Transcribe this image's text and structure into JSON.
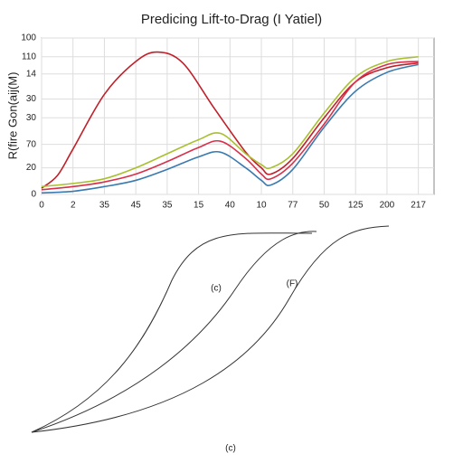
{
  "chart_data": {
    "type": "line",
    "title": "Predicing Lift-to-Drag (I Yatiel)",
    "ylabel": "R(fire Gon(aij(M)",
    "xlim": [
      0,
      12.5
    ],
    "ylim": [
      0,
      100
    ],
    "xticks": [
      0,
      {
        "value": 1,
        "label": "2"
      },
      {
        "value": 2,
        "label": "35"
      },
      {
        "value": 3,
        "label": "45"
      },
      {
        "value": 4,
        "label": "35"
      },
      {
        "value": 5,
        "label": "15"
      },
      {
        "value": 6,
        "label": "40"
      },
      {
        "value": 7,
        "label": "10"
      },
      {
        "value": 8,
        "label": "77"
      },
      {
        "value": 9,
        "label": "50"
      },
      {
        "value": 10,
        "label": "125"
      },
      {
        "value": 11,
        "label": "200"
      },
      {
        "value": 12,
        "label": "217"
      }
    ],
    "yticks": [
      0,
      {
        "value": 17,
        "label": "20"
      },
      {
        "value": 32,
        "label": "70"
      },
      {
        "value": 49,
        "label": "30"
      },
      {
        "value": 61,
        "label": "30"
      },
      {
        "value": 77,
        "label": "14"
      },
      {
        "value": 88,
        "label": "110"
      },
      100
    ],
    "grid": true,
    "series": [
      {
        "color": "#c0202a",
        "x": [
          0,
          0.5,
          1,
          2,
          3,
          3.7,
          4.5,
          5.5,
          6.5,
          7,
          7.3,
          8,
          9,
          10,
          11,
          12
        ],
        "values": [
          4,
          12,
          29,
          64,
          85,
          91,
          84,
          55,
          27,
          17,
          13,
          23,
          49,
          72,
          81,
          84
        ]
      },
      {
        "color": "#a8c030",
        "x": [
          0,
          1,
          2,
          3,
          4,
          5,
          5.7,
          6.5,
          7,
          7.3,
          8,
          9,
          10,
          11,
          12
        ],
        "values": [
          5,
          7,
          10,
          17,
          26,
          35,
          39,
          26,
          19,
          17,
          26,
          52,
          75,
          85,
          88
        ]
      },
      {
        "color": "#d8304a",
        "x": [
          0,
          1,
          2,
          3,
          4,
          5,
          5.7,
          6.5,
          7,
          7.3,
          8,
          9,
          10,
          11,
          12
        ],
        "values": [
          3,
          5,
          8,
          13,
          21,
          30,
          34,
          23,
          13,
          10,
          20,
          45,
          72,
          83,
          85
        ]
      },
      {
        "color": "#3a7ab0",
        "x": [
          0,
          1,
          2,
          3,
          4,
          5,
          5.7,
          6.5,
          7,
          7.3,
          8,
          9,
          10,
          11,
          12
        ],
        "values": [
          1,
          2,
          5,
          9,
          16,
          24,
          27,
          17,
          9,
          6,
          16,
          43,
          66,
          78,
          83
        ]
      }
    ]
  },
  "diagram": {
    "labels": [
      "(c)",
      "(F)",
      "(c)"
    ]
  }
}
